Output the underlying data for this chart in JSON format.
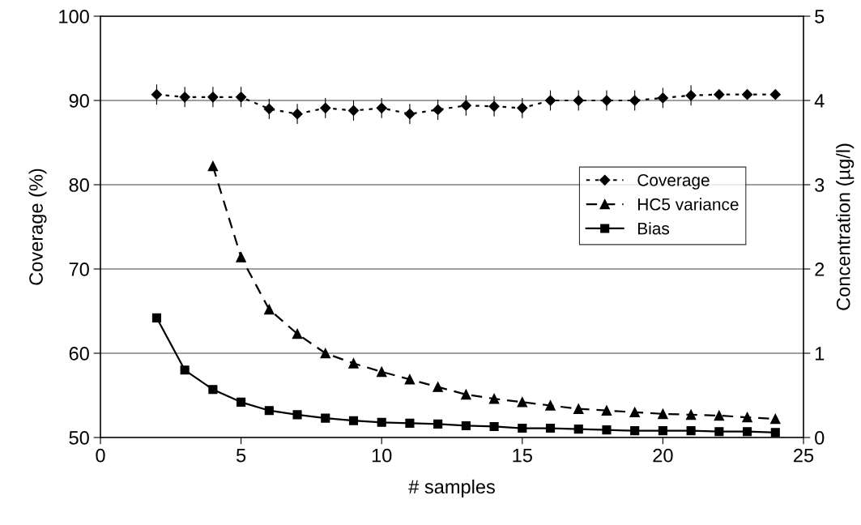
{
  "chart_data": {
    "type": "line",
    "xlabel": "# samples",
    "ylabel": "Coverage (%)",
    "y2label": "Concentration (µg/l)",
    "xlim": [
      0,
      25
    ],
    "xticks": [
      0,
      5,
      10,
      15,
      20,
      25
    ],
    "ylim": [
      50,
      100
    ],
    "yticks": [
      50,
      60,
      70,
      80,
      90,
      100
    ],
    "y2lim": [
      0,
      5
    ],
    "y2ticks": [
      0,
      1,
      2,
      3,
      4,
      5
    ],
    "grid": "y",
    "legend": "right",
    "series": [
      {
        "name": "Coverage",
        "color": "#000000",
        "marker": "diamond",
        "line_style": "dotted",
        "x": [
          2,
          3,
          4,
          5,
          6,
          7,
          8,
          9,
          10,
          11,
          12,
          13,
          14,
          15,
          16,
          17,
          18,
          19,
          20,
          21,
          22,
          23,
          24
        ],
        "values": [
          90.7,
          90.4,
          90.4,
          90.4,
          89.0,
          88.4,
          89.1,
          88.8,
          89.1,
          88.4,
          88.9,
          89.4,
          89.3,
          89.1,
          90.0,
          90.0,
          90.0,
          90.0,
          90.3,
          90.6,
          90.7,
          90.7,
          90.7
        ],
        "errors": [
          1.2,
          1.2,
          1.2,
          1.2,
          1.2,
          1.2,
          1.2,
          1.2,
          1.2,
          1.2,
          1.2,
          1.2,
          1.2,
          1.2,
          1.2,
          1.2,
          1.2,
          1.2,
          1.2,
          1.2,
          null,
          null,
          null
        ]
      },
      {
        "name": "HC5 variance",
        "color": "#000000",
        "marker": "triangle",
        "line_style": "dashed",
        "axis": "y2",
        "x": [
          4,
          5,
          6,
          7,
          8,
          9,
          10,
          11,
          12,
          13,
          14,
          15,
          16,
          17,
          18,
          19,
          20,
          21,
          22,
          23,
          24
        ],
        "values": [
          3.22,
          2.14,
          1.52,
          1.23,
          1.0,
          0.88,
          0.78,
          0.69,
          0.6,
          0.51,
          0.46,
          0.42,
          0.38,
          0.34,
          0.32,
          0.3,
          0.28,
          0.27,
          0.26,
          0.24,
          0.22
        ]
      },
      {
        "name": "Bias",
        "color": "#000000",
        "marker": "square",
        "line_style": "solid",
        "axis": "y2",
        "x": [
          2,
          3,
          4,
          5,
          6,
          7,
          8,
          9,
          10,
          11,
          12,
          13,
          14,
          15,
          16,
          17,
          18,
          19,
          20,
          21,
          22,
          23,
          24
        ],
        "values": [
          1.42,
          0.8,
          0.57,
          0.42,
          0.32,
          0.27,
          0.23,
          0.2,
          0.18,
          0.17,
          0.16,
          0.14,
          0.13,
          0.11,
          0.11,
          0.1,
          0.09,
          0.08,
          0.08,
          0.08,
          0.07,
          0.07,
          0.06
        ]
      }
    ]
  }
}
